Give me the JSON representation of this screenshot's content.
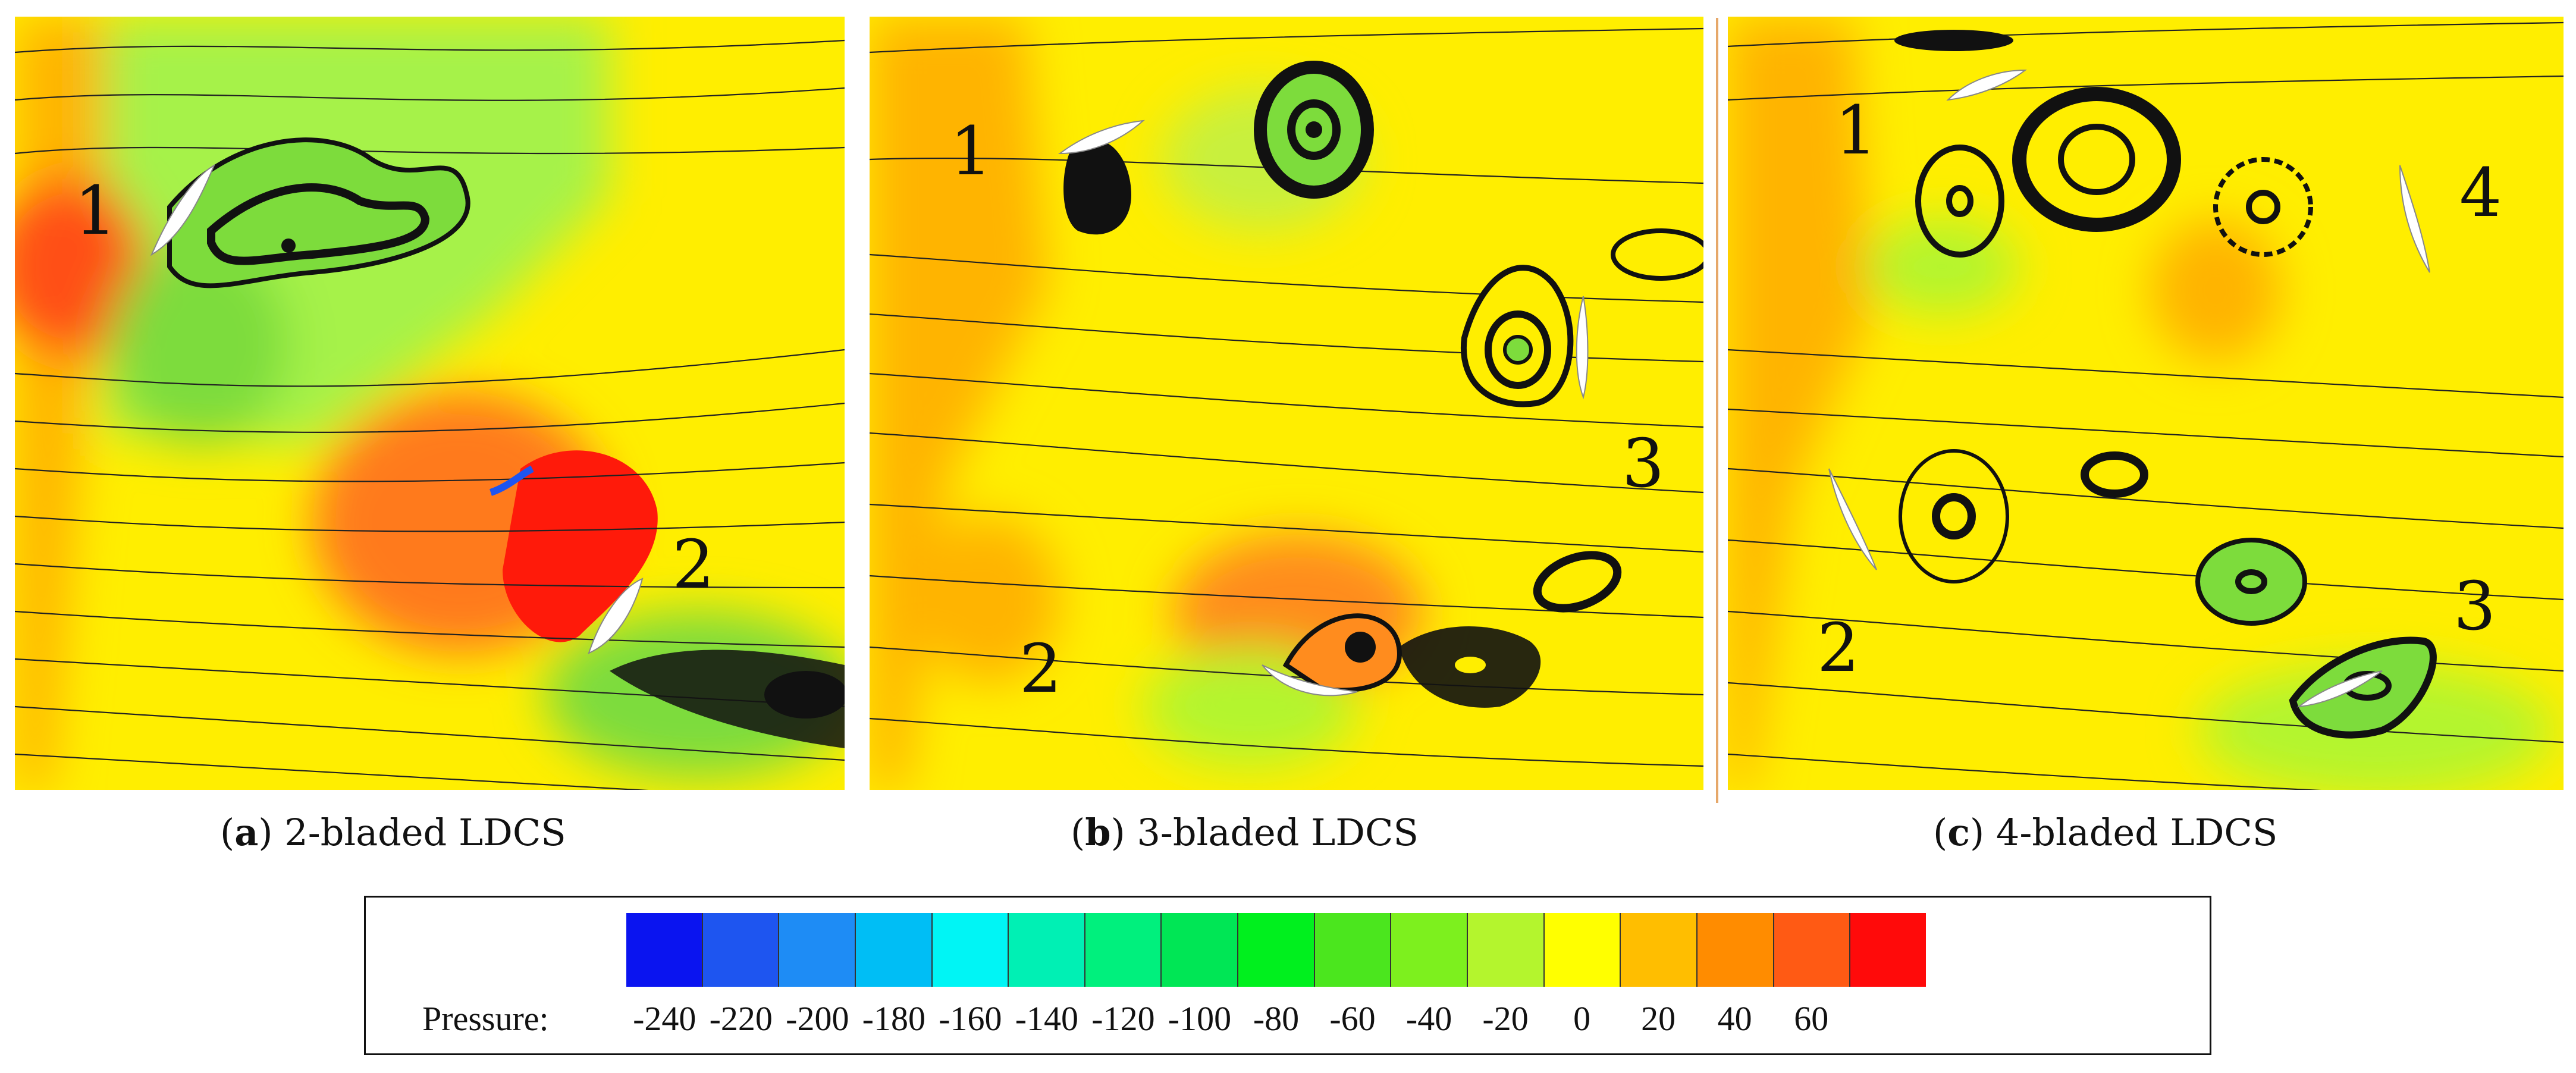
{
  "panels": [
    {
      "caption_letter": "a",
      "caption_text": " 2-bladed LDCS",
      "blade_labels": [
        "1",
        "2"
      ]
    },
    {
      "caption_letter": "b",
      "caption_text": " 3-bladed LDCS",
      "blade_labels": [
        "1",
        "2",
        "3"
      ]
    },
    {
      "caption_letter": "c",
      "caption_text": " 4-bladed LDCS",
      "blade_labels": [
        "1",
        "4",
        "2",
        "3"
      ]
    }
  ],
  "legend": {
    "title": "Pressure:",
    "ticks": [
      "-240",
      "-220",
      "-200",
      "-180",
      "-160",
      "-140",
      "-120",
      "-100",
      "-80",
      "-60",
      "-40",
      "-20",
      "0",
      "20",
      "40",
      "60"
    ],
    "colors": [
      "#0a14f0",
      "#1e55f0",
      "#1e8cf5",
      "#00bef5",
      "#00f5f5",
      "#00f0b4",
      "#00f07d",
      "#00e655",
      "#00f01e",
      "#4be61e",
      "#7df01e",
      "#b4f52d",
      "#ffff00",
      "#ffbe00",
      "#ff8c00",
      "#ff5a14",
      "#ff0a0a"
    ]
  }
}
